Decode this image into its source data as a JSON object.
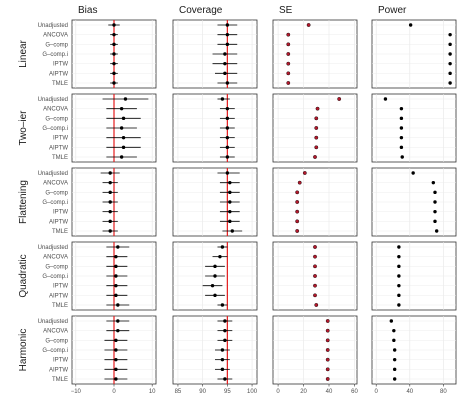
{
  "chart_data": {
    "type": "scatter",
    "layout": "faceted forest plot (rows = scenarios, columns = metrics)",
    "columns": [
      "Bias",
      "Coverage",
      "SE",
      "Power"
    ],
    "rows": [
      "Linear",
      "Two–ier",
      "Flattening",
      "Quadratic",
      "Harmonic"
    ],
    "methods": [
      "Unadjusted",
      "ANCOVA",
      "G-comp",
      "G-comp.i",
      "IPTW",
      "AIPTW",
      "TMLE"
    ],
    "method_labels": {
      "Linear": [
        "Unadjusted",
        "ANCOVA",
        "G–comp",
        "G–comp.i",
        "IPTW",
        "AIPTW",
        "TMLE"
      ],
      "Two–ier": [
        "Unadjusted",
        "ANCOVA",
        "G–comp",
        "G–comp.i",
        "IPTW",
        "AIPTW",
        "TMLE"
      ],
      "Flattening": [
        "Unadjusted",
        "ANCOVA",
        "G–comp",
        "G–comp.i",
        "IPTW",
        "AIPTW",
        "TMLE"
      ],
      "Quadratic": [
        "Unadjusted",
        "ANCOVA",
        "G–comp",
        "G–comp.i",
        "IPTW",
        "AIPTW",
        "TMLE"
      ],
      "Harmonic": [
        "Unadjusted",
        "ANCOVA",
        "G–comp",
        "G–comp.i",
        "IPTW",
        "AIPTW",
        "TMLE"
      ]
    },
    "x_axes": {
      "Bias": {
        "ticks": [
          "−10",
          "0",
          "10"
        ],
        "tick_values": [
          -10,
          0,
          10
        ],
        "xlim": [
          -11,
          11
        ],
        "reference": 0
      },
      "Coverage": {
        "ticks": [
          "85",
          "90",
          "95",
          "100"
        ],
        "tick_values": [
          85,
          90,
          95,
          100
        ],
        "xlim": [
          84,
          101
        ],
        "reference": 95
      },
      "SE": {
        "ticks": [
          "0",
          "20",
          "40",
          "60"
        ],
        "tick_values": [
          0,
          20,
          40,
          60
        ],
        "xlim": [
          -4,
          62
        ],
        "reference": null
      },
      "Power": {
        "ticks": [
          "0",
          "40",
          "80"
        ],
        "tick_values": [
          0,
          40,
          80
        ],
        "xlim": [
          -5,
          95
        ],
        "reference": null
      }
    },
    "data": {
      "Linear": {
        "Bias": [
          [
            0,
            -1.5,
            1.5
          ],
          [
            0,
            -1,
            1
          ],
          [
            0,
            -1,
            1
          ],
          [
            0,
            -1,
            1
          ],
          [
            0,
            -1,
            1
          ],
          [
            0,
            -1,
            1
          ],
          [
            0,
            -1,
            1
          ]
        ],
        "Coverage": [
          [
            95,
            93,
            97
          ],
          [
            95,
            93,
            97
          ],
          [
            95,
            93,
            97
          ],
          [
            94.5,
            92,
            97
          ],
          [
            94.5,
            92,
            97
          ],
          [
            94.5,
            92.5,
            97
          ],
          [
            95,
            93,
            97
          ]
        ],
        "SE": [
          [
            24,
            23,
            25
          ],
          [
            8,
            7.5,
            8.5
          ],
          [
            8,
            7.5,
            8.5
          ],
          [
            8,
            7.5,
            8.5
          ],
          [
            8,
            7.5,
            8.5
          ],
          [
            8,
            7.5,
            8.5
          ],
          [
            8,
            7.5,
            8.5
          ]
        ],
        "Power": [
          [
            41,
            40,
            42
          ],
          [
            88,
            87,
            89
          ],
          [
            88,
            87,
            89
          ],
          [
            88,
            87,
            89
          ],
          [
            88,
            87,
            89
          ],
          [
            88,
            87,
            89
          ],
          [
            88,
            87,
            89
          ]
        ]
      },
      "Two–ier": {
        "Bias": [
          [
            3,
            -3,
            9
          ],
          [
            2,
            -2,
            6
          ],
          [
            2.5,
            -2,
            7
          ],
          [
            2,
            -2,
            6
          ],
          [
            2.5,
            -2,
            7
          ],
          [
            2.5,
            -2,
            7
          ],
          [
            2,
            -2,
            6
          ]
        ],
        "Coverage": [
          [
            94,
            93,
            95.5
          ],
          [
            95,
            93.5,
            96.5
          ],
          [
            95,
            93.5,
            96.5
          ],
          [
            95,
            93.5,
            96.5
          ],
          [
            95,
            93.5,
            96.5
          ],
          [
            95,
            93.5,
            96.5
          ],
          [
            95,
            93.5,
            96.5
          ]
        ],
        "SE": [
          [
            48,
            47,
            49
          ],
          [
            31,
            30,
            32
          ],
          [
            30,
            29,
            31
          ],
          [
            30,
            29,
            31
          ],
          [
            30,
            29,
            31
          ],
          [
            30,
            29,
            31
          ],
          [
            29,
            28,
            30
          ]
        ],
        "Power": [
          [
            11,
            10,
            12
          ],
          [
            30,
            29,
            31
          ],
          [
            30,
            29,
            31
          ],
          [
            30,
            29,
            31
          ],
          [
            30,
            29,
            31
          ],
          [
            30,
            29,
            31
          ],
          [
            31,
            30,
            32
          ]
        ]
      },
      "Flattening": {
        "Bias": [
          [
            -1,
            -3.5,
            1.5
          ],
          [
            -1,
            -3,
            1
          ],
          [
            -1,
            -3,
            1
          ],
          [
            -1,
            -3,
            1
          ],
          [
            -1,
            -3,
            1
          ],
          [
            -1,
            -3,
            1
          ],
          [
            -1,
            -3,
            1
          ]
        ],
        "Coverage": [
          [
            95,
            93,
            97.5
          ],
          [
            95.5,
            93.5,
            97.5
          ],
          [
            95.5,
            93.5,
            97.5
          ],
          [
            95.5,
            93.5,
            97.5
          ],
          [
            95.5,
            93.5,
            97.5
          ],
          [
            95.5,
            93.5,
            97.5
          ],
          [
            96,
            94,
            98
          ]
        ],
        "SE": [
          [
            21,
            20,
            22
          ],
          [
            17,
            16,
            18
          ],
          [
            15,
            14,
            16
          ],
          [
            15,
            14,
            16
          ],
          [
            15,
            14,
            16
          ],
          [
            15,
            14,
            16
          ],
          [
            15,
            14,
            16
          ]
        ],
        "Power": [
          [
            44,
            43,
            45
          ],
          [
            68,
            67,
            69
          ],
          [
            70,
            69,
            71
          ],
          [
            70,
            69,
            71
          ],
          [
            70,
            69,
            71
          ],
          [
            70,
            69,
            71
          ],
          [
            72,
            71,
            73
          ]
        ]
      },
      "Quadratic": {
        "Bias": [
          [
            1,
            -2,
            4
          ],
          [
            0.5,
            -2,
            3.5
          ],
          [
            0.5,
            -2,
            3.5
          ],
          [
            0.5,
            -2,
            3.5
          ],
          [
            0.5,
            -2,
            3.5
          ],
          [
            0.5,
            -2,
            3.5
          ],
          [
            1,
            -2,
            4
          ]
        ],
        "Coverage": [
          [
            94,
            93,
            95
          ],
          [
            93.5,
            92,
            95
          ],
          [
            92.5,
            90.5,
            94.5
          ],
          [
            92.5,
            90.5,
            94.5
          ],
          [
            92,
            90,
            94
          ],
          [
            92.5,
            90.5,
            94.5
          ],
          [
            94,
            93,
            95
          ]
        ],
        "SE": [
          [
            29,
            28,
            30
          ],
          [
            29,
            28,
            30
          ],
          [
            29,
            28,
            30
          ],
          [
            29,
            28,
            30
          ],
          [
            29,
            28,
            30
          ],
          [
            29,
            28,
            30
          ],
          [
            30,
            29,
            31
          ]
        ],
        "Power": [
          [
            27,
            26,
            28
          ],
          [
            27,
            26,
            28
          ],
          [
            27,
            26,
            28
          ],
          [
            27,
            26,
            28
          ],
          [
            27,
            26,
            28
          ],
          [
            27,
            26,
            28
          ],
          [
            27,
            26,
            28
          ]
        ]
      },
      "Harmonic": {
        "Bias": [
          [
            1,
            -2,
            4
          ],
          [
            1,
            -2,
            4
          ],
          [
            0.5,
            -2.5,
            3.5
          ],
          [
            0.5,
            -2.5,
            3.5
          ],
          [
            0.5,
            -2.5,
            3.5
          ],
          [
            0.5,
            -2.5,
            3.5
          ],
          [
            0.5,
            -2.5,
            3.5
          ]
        ],
        "Coverage": [
          [
            94.5,
            93,
            96
          ],
          [
            94.5,
            93,
            96
          ],
          [
            94.5,
            93,
            96
          ],
          [
            94,
            92.5,
            95.5
          ],
          [
            94,
            92.5,
            95.5
          ],
          [
            94,
            92.5,
            95.5
          ],
          [
            94.5,
            93,
            96
          ]
        ],
        "SE": [
          [
            39,
            38.5,
            39.5
          ],
          [
            39,
            38.5,
            39.5
          ],
          [
            39,
            38.5,
            39.5
          ],
          [
            39,
            38.5,
            39.5
          ],
          [
            39,
            38.5,
            39.5
          ],
          [
            39,
            38.5,
            39.5
          ],
          [
            39,
            38.5,
            39.5
          ]
        ],
        "Power": [
          [
            18,
            17,
            19
          ],
          [
            21,
            20,
            22
          ],
          [
            21,
            20,
            22
          ],
          [
            22,
            21,
            23
          ],
          [
            22,
            21,
            23
          ],
          [
            22,
            21,
            23
          ],
          [
            22,
            21,
            23
          ]
        ]
      }
    },
    "se_point_color": "#b2182b",
    "reference_line_color": "#e41a1c",
    "point_color": "#000000",
    "grid": true,
    "legend": "none"
  }
}
